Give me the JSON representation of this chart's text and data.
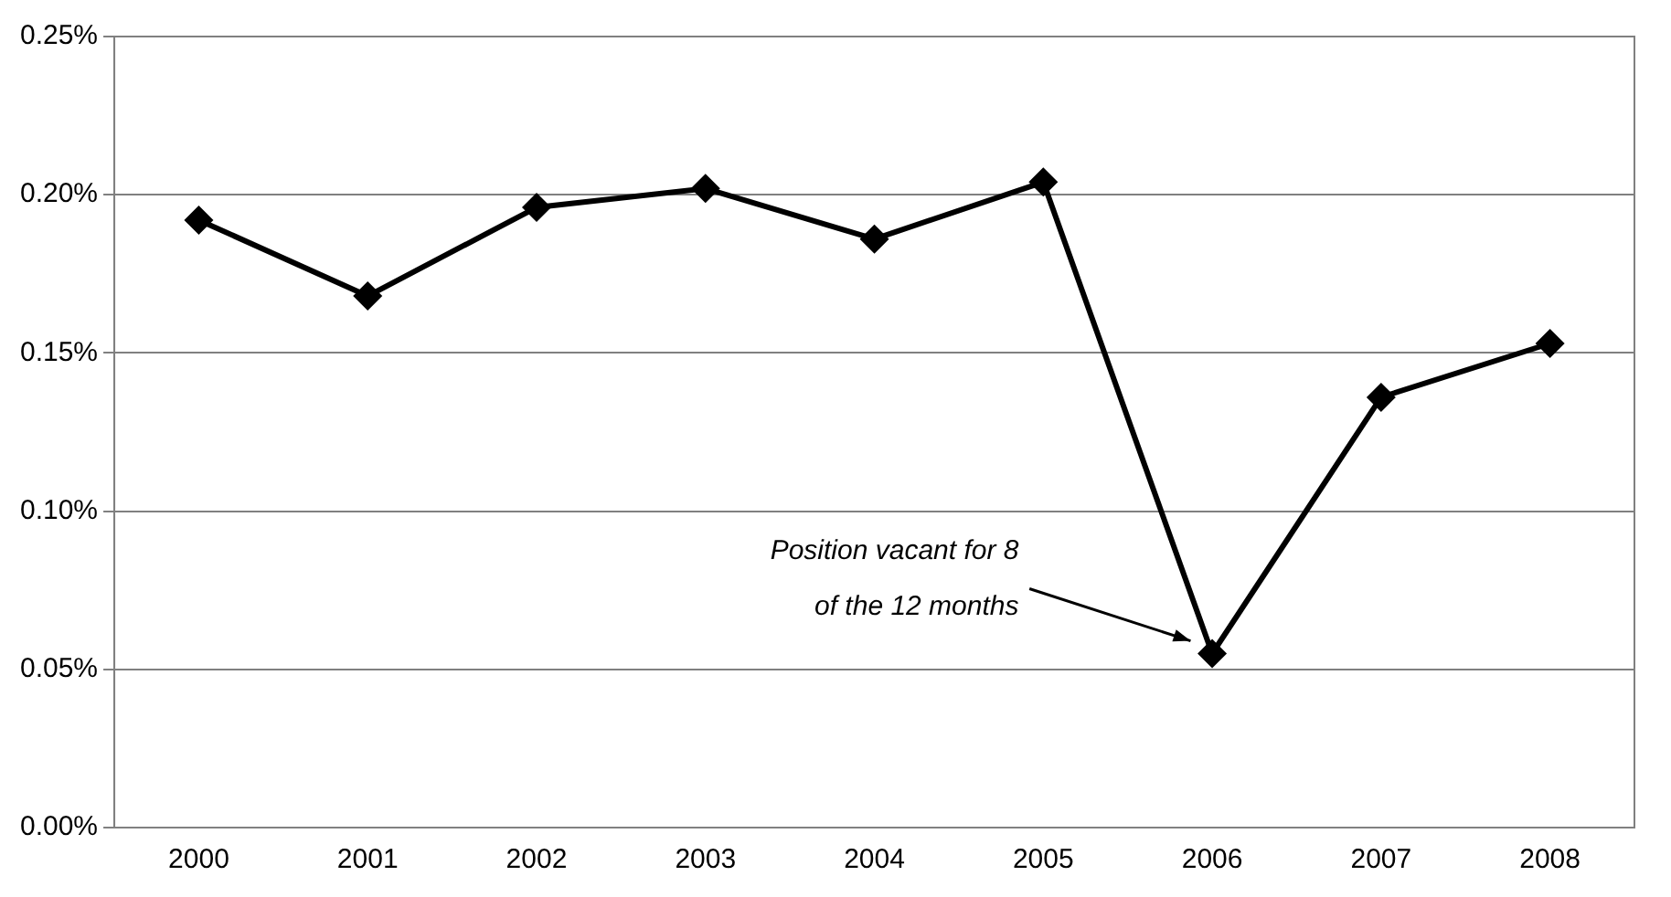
{
  "chart_data": {
    "type": "line",
    "categories": [
      "2000",
      "2001",
      "2002",
      "2003",
      "2004",
      "2005",
      "2006",
      "2007",
      "2008"
    ],
    "series": [
      {
        "color": "#000000",
        "values": [
          0.192,
          0.168,
          0.196,
          0.202,
          0.186,
          0.204,
          0.055,
          0.136,
          0.153
        ]
      }
    ],
    "ylim": [
      0,
      0.25
    ],
    "yticks": [
      {
        "value": 0,
        "label": "0.00%"
      },
      {
        "value": 0.05,
        "label": "0.05%"
      },
      {
        "value": 0.1,
        "label": "0.10%"
      },
      {
        "value": 0.15,
        "label": "0.15%"
      },
      {
        "value": 0.2,
        "label": "0.20%"
      },
      {
        "value": 0.25,
        "label": "0.25%"
      }
    ],
    "grid": "y",
    "legend": false,
    "marker": "diamond",
    "line_style": "solid",
    "annotations": [
      "Position vacant for 8\nof the 12 months"
    ]
  }
}
